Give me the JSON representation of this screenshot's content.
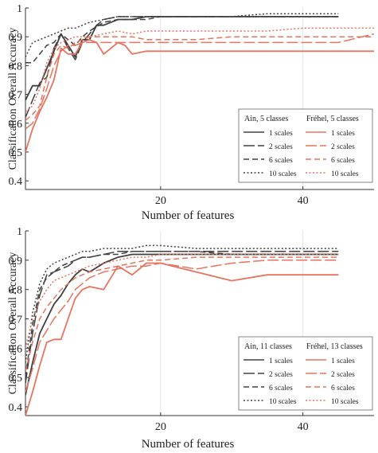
{
  "chart_data": [
    {
      "type": "line",
      "xlabel": "Number of features",
      "ylabel": "Classification Overall Accuracy",
      "xlim": [
        1,
        50
      ],
      "ylim": [
        0.37,
        1.0
      ],
      "xticks": [
        20,
        40
      ],
      "yticks": [
        0.4,
        0.5,
        0.6,
        0.7,
        0.8,
        0.9,
        1
      ],
      "ytick_labels": [
        "0.4",
        "0.5",
        "0.6",
        "0.7",
        "0.8",
        "0.9",
        "1"
      ],
      "xtick_labels": [
        "20",
        "40"
      ],
      "grid": "vertical lines at x ticks",
      "legend_position": "bottom-right",
      "legend": {
        "group_left_title": "Ain, 5 classes",
        "group_right_title": "Fréhel, 5 classes",
        "labels": [
          "1 scales",
          "2 scales",
          "6 scales",
          "10 scales"
        ]
      },
      "series": [
        {
          "name": "1 scales",
          "group": "Ain",
          "color": "#404040",
          "dash": "solid",
          "x": [
            1,
            2,
            3,
            4,
            5,
            6,
            7,
            8,
            9,
            10,
            11,
            12,
            13,
            14,
            15,
            16,
            18,
            20,
            25,
            30,
            35,
            40,
            45
          ],
          "y": [
            0.68,
            0.73,
            0.73,
            0.79,
            0.85,
            0.91,
            0.87,
            0.83,
            0.89,
            0.89,
            0.94,
            0.94,
            0.95,
            0.96,
            0.96,
            0.96,
            0.97,
            0.97,
            0.97,
            0.97,
            0.97,
            0.97,
            0.97
          ]
        },
        {
          "name": "2 scales",
          "group": "Ain",
          "color": "#404040",
          "dash": "longdash",
          "x": [
            1,
            2,
            3,
            4,
            5,
            6,
            7,
            8,
            9,
            10,
            11,
            12,
            14,
            16,
            18,
            20,
            25,
            30,
            35,
            40,
            45
          ],
          "y": [
            0.62,
            0.68,
            0.74,
            0.76,
            0.86,
            0.91,
            0.86,
            0.82,
            0.88,
            0.91,
            0.94,
            0.96,
            0.97,
            0.97,
            0.97,
            0.97,
            0.97,
            0.97,
            0.97,
            0.97,
            0.97
          ]
        },
        {
          "name": "6 scales",
          "group": "Ain",
          "color": "#404040",
          "dash": "dash",
          "x": [
            1,
            2,
            3,
            4,
            5,
            6,
            7,
            8,
            9,
            10,
            12,
            14,
            16,
            18,
            20,
            25,
            30,
            35,
            40,
            45
          ],
          "y": [
            0.81,
            0.81,
            0.84,
            0.87,
            0.88,
            0.91,
            0.89,
            0.87,
            0.9,
            0.92,
            0.95,
            0.96,
            0.96,
            0.96,
            0.97,
            0.97,
            0.97,
            0.97,
            0.97,
            0.97
          ]
        },
        {
          "name": "10 scales",
          "group": "Ain",
          "color": "#404040",
          "dash": "dot",
          "x": [
            1,
            2,
            3,
            4,
            5,
            6,
            7,
            8,
            9,
            10,
            12,
            14,
            16,
            18,
            20,
            25,
            30,
            35,
            40,
            45
          ],
          "y": [
            0.83,
            0.88,
            0.89,
            0.9,
            0.91,
            0.92,
            0.93,
            0.93,
            0.94,
            0.95,
            0.96,
            0.97,
            0.97,
            0.97,
            0.97,
            0.97,
            0.97,
            0.98,
            0.98,
            0.98
          ]
        },
        {
          "name": "1 scales",
          "group": "Fréhel",
          "color": "#e8735e",
          "dash": "solid",
          "x": [
            1,
            2,
            3,
            4,
            5,
            6,
            7,
            8,
            9,
            10,
            11,
            12,
            13,
            14,
            15,
            16,
            18,
            20,
            25,
            30,
            35,
            40,
            45,
            50
          ],
          "y": [
            0.5,
            0.58,
            0.64,
            0.69,
            0.75,
            0.86,
            0.84,
            0.84,
            0.88,
            0.89,
            0.88,
            0.84,
            0.86,
            0.88,
            0.87,
            0.84,
            0.85,
            0.85,
            0.85,
            0.85,
            0.85,
            0.85,
            0.85,
            0.85
          ]
        },
        {
          "name": "2 scales",
          "group": "Fréhel",
          "color": "#e8735e",
          "dash": "longdash",
          "x": [
            1,
            2,
            3,
            4,
            5,
            6,
            7,
            8,
            9,
            10,
            12,
            14,
            16,
            18,
            20,
            25,
            30,
            35,
            40,
            45,
            50
          ],
          "y": [
            0.58,
            0.6,
            0.65,
            0.72,
            0.8,
            0.85,
            0.87,
            0.87,
            0.88,
            0.88,
            0.88,
            0.88,
            0.88,
            0.88,
            0.88,
            0.88,
            0.88,
            0.88,
            0.88,
            0.88,
            0.91
          ]
        },
        {
          "name": "6 scales",
          "group": "Fréhel",
          "color": "#e8735e",
          "dash": "dash",
          "x": [
            1,
            2,
            3,
            4,
            5,
            6,
            7,
            8,
            9,
            10,
            12,
            14,
            16,
            18,
            20,
            25,
            30,
            35,
            40,
            45,
            50
          ],
          "y": [
            0.61,
            0.63,
            0.66,
            0.76,
            0.84,
            0.87,
            0.86,
            0.88,
            0.89,
            0.9,
            0.9,
            0.9,
            0.9,
            0.89,
            0.89,
            0.89,
            0.9,
            0.9,
            0.9,
            0.9,
            0.9
          ]
        },
        {
          "name": "10 scales",
          "group": "Fréhel",
          "color": "#e8735e",
          "dash": "dot",
          "x": [
            1,
            2,
            3,
            4,
            5,
            6,
            7,
            8,
            9,
            10,
            12,
            14,
            16,
            18,
            20,
            25,
            30,
            35,
            40,
            45,
            50
          ],
          "y": [
            0.64,
            0.66,
            0.72,
            0.81,
            0.86,
            0.88,
            0.89,
            0.9,
            0.9,
            0.9,
            0.91,
            0.92,
            0.91,
            0.92,
            0.92,
            0.92,
            0.92,
            0.92,
            0.93,
            0.93,
            0.93
          ]
        }
      ]
    },
    {
      "type": "line",
      "xlabel": "Number of features",
      "ylabel": "Classification Overall Accuracy",
      "xlim": [
        1,
        50
      ],
      "ylim": [
        0.37,
        1.0
      ],
      "xticks": [
        20,
        40
      ],
      "yticks": [
        0.4,
        0.5,
        0.6,
        0.7,
        0.8,
        0.9,
        1
      ],
      "ytick_labels": [
        "0.4",
        "0.5",
        "0.6",
        "0.7",
        "0.8",
        "0.9",
        "1"
      ],
      "xtick_labels": [
        "20",
        "40"
      ],
      "grid": "vertical lines at x ticks",
      "legend_position": "bottom-right",
      "legend": {
        "group_left_title": "Ain, 11 classes",
        "group_right_title": "Fréhel, 13 classes",
        "labels": [
          "1 scales",
          "2 scales",
          "6 scales",
          "10 scales"
        ]
      },
      "series": [
        {
          "name": "1 scales",
          "group": "Ain",
          "color": "#404040",
          "dash": "solid",
          "x": [
            1,
            2,
            3,
            4,
            5,
            6,
            7,
            8,
            9,
            10,
            12,
            14,
            16,
            18,
            20,
            25,
            30,
            35,
            40,
            45
          ],
          "y": [
            0.44,
            0.55,
            0.65,
            0.7,
            0.75,
            0.78,
            0.82,
            0.85,
            0.87,
            0.86,
            0.89,
            0.91,
            0.92,
            0.92,
            0.92,
            0.92,
            0.92,
            0.92,
            0.92,
            0.92
          ]
        },
        {
          "name": "2 scales",
          "group": "Ain",
          "color": "#404040",
          "dash": "longdash",
          "x": [
            1,
            2,
            3,
            4,
            5,
            6,
            7,
            8,
            9,
            10,
            12,
            14,
            16,
            18,
            20,
            25,
            30,
            35,
            40,
            45
          ],
          "y": [
            0.48,
            0.65,
            0.78,
            0.85,
            0.86,
            0.87,
            0.88,
            0.9,
            0.91,
            0.91,
            0.92,
            0.93,
            0.93,
            0.93,
            0.93,
            0.93,
            0.93,
            0.93,
            0.93,
            0.93
          ]
        },
        {
          "name": "6 scales",
          "group": "Ain",
          "color": "#404040",
          "dash": "dash",
          "x": [
            1,
            2,
            3,
            4,
            5,
            6,
            7,
            8,
            9,
            10,
            12,
            14,
            16,
            18,
            20,
            25,
            30,
            35,
            40,
            45
          ],
          "y": [
            0.5,
            0.68,
            0.8,
            0.84,
            0.86,
            0.88,
            0.89,
            0.9,
            0.91,
            0.91,
            0.92,
            0.92,
            0.93,
            0.93,
            0.93,
            0.93,
            0.92,
            0.92,
            0.92,
            0.92
          ]
        },
        {
          "name": "10 scales",
          "group": "Ain",
          "color": "#404040",
          "dash": "dot",
          "x": [
            1,
            2,
            3,
            4,
            5,
            6,
            7,
            8,
            9,
            10,
            12,
            14,
            16,
            18,
            20,
            25,
            30,
            35,
            40,
            45
          ],
          "y": [
            0.55,
            0.72,
            0.82,
            0.87,
            0.89,
            0.9,
            0.91,
            0.92,
            0.93,
            0.93,
            0.94,
            0.94,
            0.94,
            0.95,
            0.95,
            0.94,
            0.94,
            0.94,
            0.94,
            0.94
          ]
        },
        {
          "name": "1 scales",
          "group": "Fréhel",
          "color": "#e8735e",
          "dash": "solid",
          "x": [
            1,
            2,
            3,
            4,
            5,
            6,
            7,
            8,
            9,
            10,
            12,
            14,
            16,
            18,
            20,
            25,
            30,
            35,
            40,
            45
          ],
          "y": [
            0.37,
            0.45,
            0.54,
            0.62,
            0.63,
            0.63,
            0.7,
            0.77,
            0.8,
            0.81,
            0.8,
            0.88,
            0.85,
            0.89,
            0.89,
            0.86,
            0.83,
            0.85,
            0.85,
            0.85
          ]
        },
        {
          "name": "2 scales",
          "group": "Fréhel",
          "color": "#e8735e",
          "dash": "longdash",
          "x": [
            1,
            2,
            3,
            4,
            5,
            6,
            7,
            8,
            9,
            10,
            12,
            14,
            16,
            18,
            20,
            25,
            30,
            35,
            40,
            45
          ],
          "y": [
            0.45,
            0.53,
            0.62,
            0.66,
            0.7,
            0.73,
            0.76,
            0.8,
            0.82,
            0.84,
            0.86,
            0.87,
            0.88,
            0.88,
            0.89,
            0.87,
            0.89,
            0.9,
            0.9,
            0.9
          ]
        },
        {
          "name": "6 scales",
          "group": "Fréhel",
          "color": "#e8735e",
          "dash": "dash",
          "x": [
            1,
            2,
            3,
            4,
            5,
            6,
            7,
            8,
            9,
            10,
            12,
            14,
            16,
            18,
            20,
            25,
            30,
            35,
            40,
            45
          ],
          "y": [
            0.52,
            0.62,
            0.7,
            0.74,
            0.77,
            0.8,
            0.82,
            0.84,
            0.85,
            0.86,
            0.87,
            0.88,
            0.89,
            0.9,
            0.9,
            0.91,
            0.91,
            0.91,
            0.91,
            0.91
          ]
        },
        {
          "name": "10 scales",
          "group": "Fréhel",
          "color": "#e8735e",
          "dash": "dot",
          "x": [
            1,
            2,
            3,
            4,
            5,
            6,
            7,
            8,
            9,
            10,
            12,
            14,
            16,
            18,
            20,
            25,
            30,
            35,
            40,
            45
          ],
          "y": [
            0.6,
            0.7,
            0.76,
            0.8,
            0.83,
            0.84,
            0.85,
            0.86,
            0.87,
            0.88,
            0.89,
            0.9,
            0.91,
            0.91,
            0.92,
            0.92,
            0.92,
            0.92,
            0.92,
            0.92
          ]
        }
      ]
    }
  ]
}
